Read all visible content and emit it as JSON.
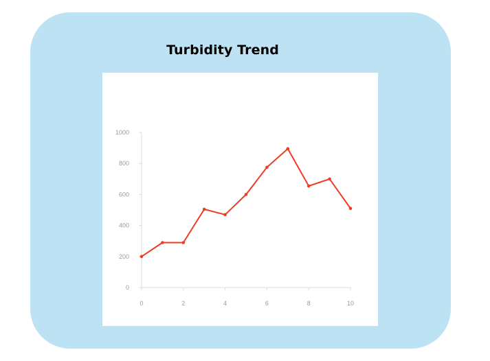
{
  "chart_data": {
    "type": "line",
    "title": "Turbidity Trend",
    "xlabel": "",
    "ylabel": "",
    "x": [
      0,
      1,
      2,
      3,
      4,
      5,
      6,
      7,
      8,
      9,
      10
    ],
    "series": [
      {
        "values": [
          200,
          290,
          290,
          505,
          470,
          600,
          775,
          895,
          655,
          700,
          510
        ]
      }
    ],
    "xlim": [
      0,
      10
    ],
    "ylim": [
      0,
      1000
    ],
    "xticks": [
      "0",
      "2",
      "4",
      "6",
      "8",
      "10"
    ],
    "yticks": [
      "0",
      "200",
      "400",
      "600",
      "800",
      "1000"
    ],
    "grid": false,
    "legend": "none"
  },
  "colors": {
    "card_background": "#bde2f3",
    "panel_background": "#ffffff",
    "line": "#f03a22",
    "axis": "#dcdcdc",
    "tick_label": "#9a9a9a"
  }
}
